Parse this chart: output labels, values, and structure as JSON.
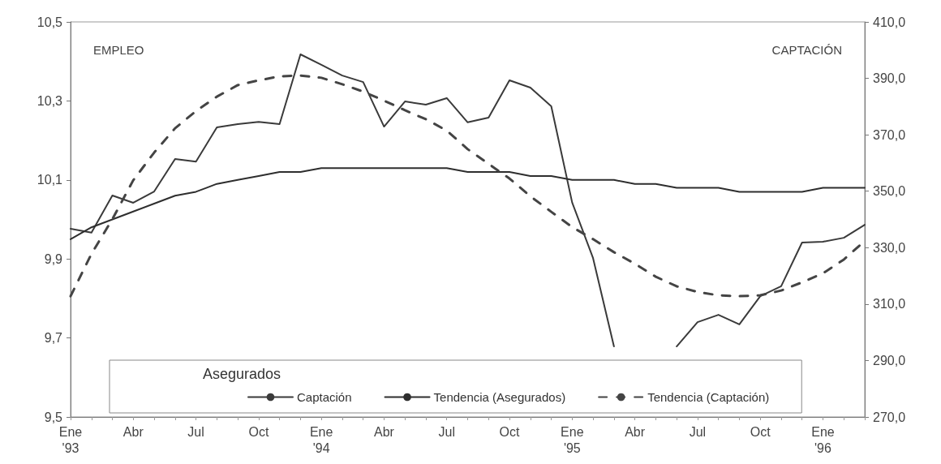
{
  "chart_data": {
    "type": "line",
    "ylabel": "EMPLEO",
    "y2label": "CAPTACIÓN",
    "categories": [
      "Ene\n'93",
      null,
      null,
      "Abr",
      null,
      null,
      "Jul",
      null,
      null,
      "Oct",
      null,
      null,
      "Ene\n'94",
      null,
      null,
      "Abr",
      null,
      null,
      "Jul",
      null,
      null,
      "Oct",
      null,
      null,
      "Ene\n'95",
      null,
      null,
      "Abr",
      null,
      null,
      "Jul",
      null,
      null,
      "Oct",
      null,
      null,
      "Ene\n'96",
      null,
      null
    ],
    "series": [
      {
        "name": "Captación",
        "color": "#3a3a3a",
        "axis": "y2",
        "line_style": "solid",
        "values": [
          336.7,
          335.3,
          348.5,
          345.9,
          349.9,
          361.4,
          360.5,
          372.6,
          373.8,
          374.6,
          373.8,
          398.5,
          394.8,
          391,
          388.7,
          372.9,
          381.8,
          380.7,
          383,
          374.4,
          376.1,
          389.3,
          386.7,
          380.1,
          346,
          326.3,
          295,
          null,
          null,
          295,
          303.6,
          306.2,
          302.8,
          312.8,
          316.3,
          331.8,
          332.1,
          333.5,
          338.1
        ]
      },
      {
        "name": "Tendencia (Asegurados)",
        "color": "#2e2e2e",
        "axis": "y",
        "line_style": "solid",
        "values": [
          9.95,
          9.98,
          10.0,
          10.02,
          10.04,
          10.06,
          10.07,
          10.09,
          10.1,
          10.11,
          10.12,
          10.12,
          10.13,
          10.13,
          10.13,
          10.13,
          10.13,
          10.13,
          10.13,
          10.12,
          10.12,
          10.12,
          10.11,
          10.11,
          10.1,
          10.1,
          10.1,
          10.09,
          10.09,
          10.08,
          10.08,
          10.08,
          10.07,
          10.07,
          10.07,
          10.07,
          10.08,
          10.08,
          10.08
        ]
      },
      {
        "name": "Tendencia (Captación)",
        "color": "#444444",
        "axis": "y2",
        "line_style": "dashed",
        "values": [
          312.8,
          327.8,
          340.1,
          353.9,
          363.7,
          372.3,
          378.4,
          383.5,
          387.6,
          389.3,
          390.7,
          391,
          390.2,
          387.9,
          385.3,
          382.1,
          378.7,
          375.5,
          371.5,
          364.9,
          359.7,
          354.5,
          348.2,
          342.7,
          337.3,
          333,
          328.4,
          324.3,
          319.7,
          316.3,
          314.3,
          313.1,
          312.8,
          313.1,
          314.8,
          317.7,
          320.9,
          325.8,
          332.4
        ]
      }
    ],
    "ylim": [
      9.5,
      10.5
    ],
    "yticks": [
      {
        "value": 9.5,
        "label": "9,5"
      },
      {
        "value": 9.7,
        "label": "9,7"
      },
      {
        "value": 9.9,
        "label": "9,9"
      },
      {
        "value": 10.1,
        "label": "10,1"
      },
      {
        "value": 10.3,
        "label": "10,3"
      },
      {
        "value": 10.5,
        "label": "10,5"
      }
    ],
    "y2lim": [
      270,
      410
    ],
    "y2ticks": [
      {
        "value": 270,
        "label": "270,0"
      },
      {
        "value": 290,
        "label": "290,0"
      },
      {
        "value": 310,
        "label": "310,0"
      },
      {
        "value": 330,
        "label": "330,0"
      },
      {
        "value": 350,
        "label": "350,0"
      },
      {
        "value": 370,
        "label": "370,0"
      },
      {
        "value": 390,
        "label": "390,0"
      },
      {
        "value": 410,
        "label": "410,0"
      }
    ],
    "annotations": [
      "Asegurados"
    ],
    "legend": "bottom",
    "grid": false,
    "marker": "none"
  }
}
